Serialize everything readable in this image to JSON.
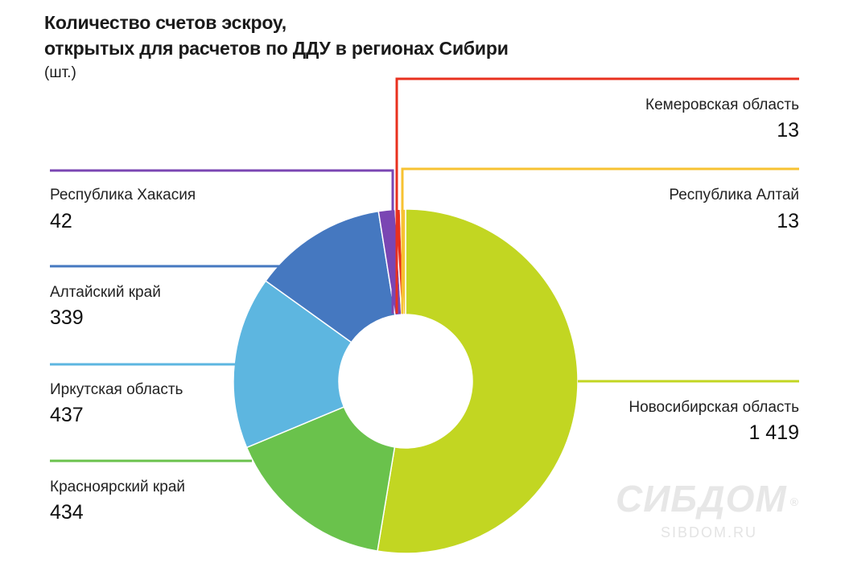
{
  "chart_data": {
    "type": "pie",
    "donut": true,
    "title": [
      "Количество счетов эскроу,",
      "открытых для расчетов по ДДУ в регионах Сибири"
    ],
    "subtitle": "(шт.)",
    "slices": [
      {
        "name": "Новосибирская область",
        "value": 1419,
        "label": "1 419",
        "color": "#c2d622"
      },
      {
        "name": "Красноярский край",
        "value": 434,
        "label": "434",
        "color": "#6ac24c"
      },
      {
        "name": "Иркутская область",
        "value": 437,
        "label": "437",
        "color": "#5db6e0"
      },
      {
        "name": "Алтайский край",
        "value": 339,
        "label": "339",
        "color": "#4578c0"
      },
      {
        "name": "Республика Хакасия",
        "value": 42,
        "label": "42",
        "color": "#7a46b3"
      },
      {
        "name": "Кемеровская область",
        "value": 13,
        "label": "13",
        "color": "#e8301e"
      },
      {
        "name": "Республика Алтай",
        "value": 13,
        "label": "13",
        "color": "#f7c232"
      }
    ]
  },
  "watermark": {
    "logo": "СИБДОМ",
    "registered": "®",
    "url": "SIBDOM.RU"
  }
}
